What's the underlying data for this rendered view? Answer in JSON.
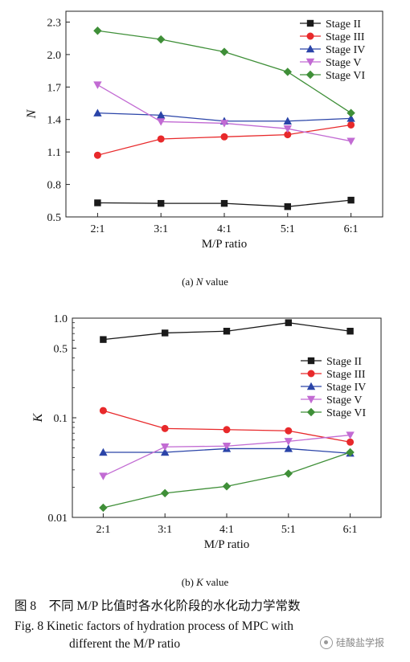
{
  "chart_data": [
    {
      "type": "line",
      "id": "a",
      "caption_prefix": "(a) ",
      "caption_var": "N",
      "caption_suffix": " value",
      "xlabel": "M/P ratio",
      "ylabel": "N",
      "categories": [
        "2:1",
        "3:1",
        "4:1",
        "5:1",
        "6:1"
      ],
      "yscale": "linear",
      "ylim": [
        0.5,
        2.4
      ],
      "yticks": [
        0.5,
        0.8,
        1.1,
        1.4,
        1.7,
        2.0,
        2.3
      ],
      "ytick_labels": [
        "0.5",
        "0.8",
        "1.1",
        "1.4",
        "1.7",
        "2.0",
        "2.3"
      ],
      "legend_position": "top-right",
      "grid": false,
      "series": [
        {
          "name": "Stage II",
          "color": "#1a1a1a",
          "marker": "square",
          "values": [
            0.63,
            0.625,
            0.625,
            0.595,
            0.655
          ]
        },
        {
          "name": "Stage III",
          "color": "#e8292b",
          "marker": "circle",
          "values": [
            1.07,
            1.22,
            1.24,
            1.26,
            1.35
          ]
        },
        {
          "name": "Stage IV",
          "color": "#2a44a8",
          "marker": "triangle-up",
          "values": [
            1.46,
            1.44,
            1.385,
            1.385,
            1.41
          ]
        },
        {
          "name": "Stage V",
          "color": "#c26bd3",
          "marker": "triangle-down",
          "values": [
            1.72,
            1.38,
            1.365,
            1.315,
            1.2
          ]
        },
        {
          "name": "Stage VI",
          "color": "#3f8f38",
          "marker": "diamond",
          "values": [
            2.22,
            2.14,
            2.025,
            1.84,
            1.46
          ]
        }
      ]
    },
    {
      "type": "line",
      "id": "b",
      "caption_prefix": "(b) ",
      "caption_var": "K",
      "caption_suffix": " value",
      "xlabel": "M/P ratio",
      "ylabel": "K",
      "categories": [
        "2:1",
        "3:1",
        "4:1",
        "5:1",
        "6:1"
      ],
      "yscale": "log",
      "ylim": [
        0.01,
        1.0
      ],
      "yticks": [
        0.01,
        0.1,
        0.5,
        1.0
      ],
      "ytick_labels": [
        "0.01",
        "0.1",
        "0.5",
        "1.0"
      ],
      "legend_position": "right",
      "grid": false,
      "series": [
        {
          "name": "Stage II",
          "color": "#1a1a1a",
          "marker": "square",
          "values": [
            0.61,
            0.71,
            0.74,
            0.9,
            0.74
          ]
        },
        {
          "name": "Stage III",
          "color": "#e8292b",
          "marker": "circle",
          "values": [
            0.118,
            0.078,
            0.076,
            0.074,
            0.057
          ]
        },
        {
          "name": "Stage IV",
          "color": "#2a44a8",
          "marker": "triangle-up",
          "values": [
            0.045,
            0.045,
            0.049,
            0.049,
            0.044
          ]
        },
        {
          "name": "Stage V",
          "color": "#c26bd3",
          "marker": "triangle-down",
          "values": [
            0.026,
            0.051,
            0.052,
            0.058,
            0.067
          ]
        },
        {
          "name": "Stage VI",
          "color": "#3f8f38",
          "marker": "diamond",
          "values": [
            0.0125,
            0.0175,
            0.0205,
            0.0275,
            0.045
          ]
        }
      ]
    }
  ],
  "figure": {
    "caption_zh": "图 8　不同 M/P 比值时各水化阶段的水化动力学常数",
    "caption_en_line1": "Fig. 8   Kinetic factors of hydration process of MPC with",
    "caption_en_line2": "different the M/P ratio"
  },
  "watermark": {
    "text": "硅酸盐学报",
    "icon": "wechat-icon"
  }
}
